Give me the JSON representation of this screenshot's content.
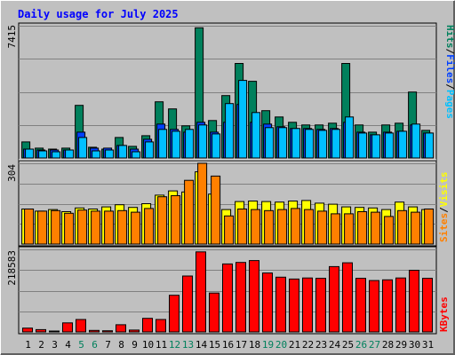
{
  "title": "Daily usage for July 2025",
  "colors": {
    "background": "#c0c0c0",
    "gridline": "#808080",
    "title": "#0000ff",
    "hits": "#00805c",
    "files": "#0040ff",
    "pages": "#00c0ff",
    "visits": "#ffff00",
    "sites": "#ff8000",
    "kbytes": "#ff0000",
    "weekend_day_label": "#00805c"
  },
  "axis_labels": {
    "top_max": "7415",
    "middle_max": "304",
    "bottom_max": "218583"
  },
  "legends": {
    "top": {
      "hits": "Hits",
      "sep1": "/",
      "files": "Files",
      "sep2": "/",
      "pages": "Pages"
    },
    "middle": {
      "visits": "Visits",
      "sep": "/",
      "sites": "Sites"
    },
    "bottom": {
      "kbytes": "KBytes"
    }
  },
  "chart_data": [
    {
      "type": "bar",
      "title": "Daily usage for July 2025",
      "categories": [
        "1",
        "2",
        "3",
        "4",
        "5",
        "6",
        "7",
        "8",
        "9",
        "10",
        "11",
        "12",
        "13",
        "14",
        "15",
        "16",
        "17",
        "18",
        "19",
        "20",
        "21",
        "22",
        "23",
        "24",
        "25",
        "26",
        "27",
        "28",
        "29",
        "30",
        "31"
      ],
      "weekend_days": [
        "5",
        "6",
        "12",
        "13",
        "19",
        "20",
        "26",
        "27"
      ],
      "ylim": [
        0,
        7415
      ],
      "series": [
        {
          "name": "Hits",
          "values": [
            900,
            550,
            500,
            550,
            2950,
            600,
            500,
            1150,
            650,
            1250,
            3150,
            2750,
            1800,
            7300,
            2100,
            3500,
            5300,
            4300,
            2650,
            2300,
            2000,
            1850,
            1850,
            1950,
            5300,
            1850,
            1450,
            1850,
            1950,
            3700,
            1550
          ]
        },
        {
          "name": "Files",
          "values": [
            500,
            450,
            450,
            450,
            1450,
            550,
            550,
            700,
            500,
            1050,
            1900,
            1600,
            1450,
            2000,
            1450,
            2000,
            3000,
            2000,
            1900,
            1750,
            1650,
            1650,
            1600,
            1650,
            2000,
            1450,
            1300,
            1450,
            1500,
            1850,
            1400
          ]
        },
        {
          "name": "Pages",
          "values": [
            500,
            400,
            350,
            450,
            1150,
            400,
            450,
            700,
            350,
            900,
            1600,
            1500,
            1600,
            1850,
            1350,
            3050,
            4350,
            2550,
            1700,
            1700,
            1650,
            1600,
            1550,
            1600,
            2300,
            1400,
            1300,
            1400,
            1500,
            1900,
            1400
          ]
        }
      ]
    },
    {
      "type": "bar",
      "categories": [
        "1",
        "2",
        "3",
        "4",
        "5",
        "6",
        "7",
        "8",
        "9",
        "10",
        "11",
        "12",
        "13",
        "14",
        "15",
        "16",
        "17",
        "18",
        "19",
        "20",
        "21",
        "22",
        "23",
        "24",
        "25",
        "26",
        "27",
        "28",
        "29",
        "30",
        "31"
      ],
      "ylim": [
        0,
        304
      ],
      "series": [
        {
          "name": "Visits",
          "values": [
            132,
            124,
            130,
            122,
            136,
            132,
            140,
            148,
            138,
            152,
            184,
            200,
            196,
            272,
            188,
            130,
            160,
            162,
            160,
            158,
            162,
            164,
            154,
            150,
            140,
            138,
            136,
            130,
            158,
            140,
            130
          ]
        },
        {
          "name": "Sites",
          "values": [
            132,
            124,
            126,
            116,
            128,
            124,
            124,
            126,
            120,
            134,
            178,
            182,
            240,
            306,
            256,
            106,
            132,
            130,
            126,
            130,
            134,
            130,
            124,
            114,
            114,
            122,
            120,
            104,
            126,
            120,
            132
          ]
        }
      ]
    },
    {
      "type": "bar",
      "categories": [
        "1",
        "2",
        "3",
        "4",
        "5",
        "6",
        "7",
        "8",
        "9",
        "10",
        "11",
        "12",
        "13",
        "14",
        "15",
        "16",
        "17",
        "18",
        "19",
        "20",
        "21",
        "22",
        "23",
        "24",
        "25",
        "26",
        "27",
        "28",
        "29",
        "30",
        "31"
      ],
      "ylim": [
        0,
        218583
      ],
      "series": [
        {
          "name": "KBytes",
          "values": [
            10000,
            6000,
            2000,
            24000,
            33000,
            4000,
            3000,
            19000,
            5000,
            36000,
            33000,
            97000,
            148000,
            212000,
            103000,
            180000,
            184000,
            189000,
            156000,
            145000,
            140000,
            143000,
            142000,
            173000,
            183000,
            142000,
            136000,
            138000,
            143000,
            163000,
            142000
          ]
        }
      ]
    }
  ]
}
